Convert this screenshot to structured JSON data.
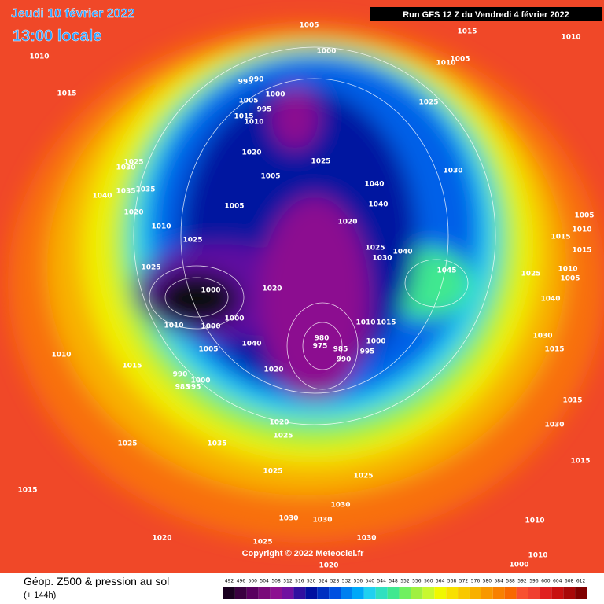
{
  "header": {
    "date": "Jeudi 10 février 2022",
    "time": "13:00 locale",
    "run": "Run GFS 12 Z du Vendredi 4 février 2022"
  },
  "copyright": "Copyright © 2022 Meteociel.fr",
  "legend": {
    "title": "Géop. Z500 & pression au sol",
    "subtitle": "(+ 144h)"
  },
  "colorbar": {
    "ticks": [
      492,
      496,
      500,
      504,
      508,
      512,
      516,
      520,
      524,
      528,
      532,
      536,
      540,
      544,
      548,
      552,
      556,
      560,
      564,
      568,
      572,
      576,
      580,
      584,
      588,
      592,
      596,
      600,
      604,
      608,
      612
    ],
    "colors": [
      "#1a0020",
      "#3a0040",
      "#5a0060",
      "#7a0a7a",
      "#8c1090",
      "#7010a0",
      "#3010a0",
      "#0010a0",
      "#0030c0",
      "#0050e0",
      "#0080f0",
      "#00a8f8",
      "#20d0f0",
      "#30e0c0",
      "#40e890",
      "#70f060",
      "#a0f040",
      "#c8f830",
      "#f0f800",
      "#f8e000",
      "#f8c800",
      "#f8b000",
      "#f89800",
      "#f88000",
      "#f86800",
      "#f85030",
      "#f04030",
      "#e02020",
      "#c81010",
      "#a80808",
      "#800000"
    ]
  },
  "labels": {
    "pressure": [
      1005,
      1015,
      1010,
      1010,
      1000,
      1005,
      1010,
      1015,
      995,
      990,
      1000,
      1005,
      995,
      1025,
      1015,
      1010,
      1020,
      1025,
      1030,
      1005,
      1025,
      1030,
      1040,
      1040,
      1035,
      1035,
      1040,
      1005,
      1020,
      1005,
      1010,
      1020,
      1015,
      1010,
      1025,
      1025,
      1030,
      1040,
      1015,
      1025,
      1045,
      1025,
      1010,
      1005,
      1020,
      1000,
      1040,
      1010,
      1000,
      1000,
      1010,
      1015,
      1000,
      1030,
      980,
      975,
      985,
      1040,
      1005,
      995,
      1015,
      1010,
      990,
      1015,
      1020,
      990,
      1000,
      985,
      995,
      1015,
      1020,
      1025,
      1035,
      1025,
      1030,
      1015,
      1025,
      1025,
      1015,
      1030,
      1030,
      1030,
      1010,
      1020,
      1030,
      1025,
      1010,
      1020,
      1000
    ]
  }
}
